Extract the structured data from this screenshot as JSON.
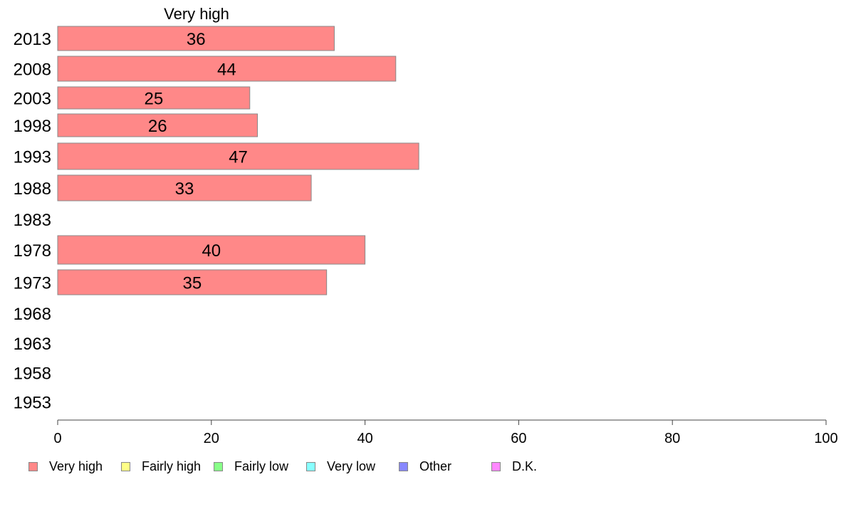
{
  "chart_data": {
    "type": "bar",
    "orientation": "horizontal",
    "title": "Very high",
    "categories": [
      "2013",
      "2008",
      "2003",
      "1998",
      "1993",
      "1988",
      "1983",
      "1978",
      "1973",
      "1968",
      "1963",
      "1958",
      "1953"
    ],
    "series": [
      {
        "name": "Very high",
        "color": "#ff8888",
        "values": [
          36,
          44,
          25,
          26,
          47,
          33,
          null,
          40,
          35,
          null,
          null,
          null,
          null
        ]
      }
    ],
    "xlim": [
      0,
      100
    ],
    "xticks": [
      0,
      20,
      40,
      60,
      80,
      100
    ],
    "grid": false,
    "legend_position": "bottom",
    "legend": [
      {
        "label": "Very high",
        "color": "#ff8888"
      },
      {
        "label": "Fairly high",
        "color": "#ffff88"
      },
      {
        "label": "Fairly low",
        "color": "#88ff88"
      },
      {
        "label": "Very low",
        "color": "#88ffff"
      },
      {
        "label": "Other",
        "color": "#8888ff"
      },
      {
        "label": "D.K.",
        "color": "#ff88ff"
      }
    ]
  }
}
